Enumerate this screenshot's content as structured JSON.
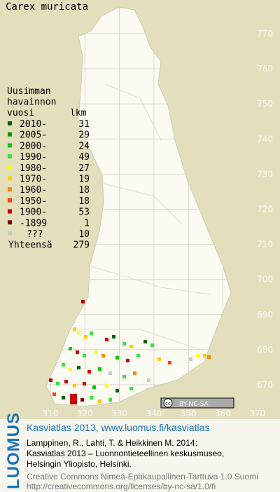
{
  "title": "Carex muricata",
  "legend": {
    "heading": [
      "Uusimman",
      "havainnon",
      "vuosi"
    ],
    "count_heading": "lkm",
    "rows": [
      {
        "label": "2010-",
        "count": 31,
        "color": "#006400"
      },
      {
        "label": "2005-",
        "count": 29,
        "color": "#009a00"
      },
      {
        "label": "2000-",
        "count": 24,
        "color": "#00cc00"
      },
      {
        "label": "1990-",
        "count": 49,
        "color": "#33e833"
      },
      {
        "label": "1980-",
        "count": 27,
        "color": "#ffff00"
      },
      {
        "label": "1970-",
        "count": 19,
        "color": "#ffcc00"
      },
      {
        "label": "1960-",
        "count": 18,
        "color": "#ff8800"
      },
      {
        "label": "1950-",
        "count": 18,
        "color": "#ff4400"
      },
      {
        "label": "1900-",
        "count": 53,
        "color": "#cc0000"
      },
      {
        "label": "-1899",
        "count": 1,
        "color": "#800000"
      },
      {
        "label": "???",
        "count": 10,
        "color": "#c8c8c8"
      }
    ],
    "total_label": "Yhteensä",
    "total": 279
  },
  "grid": {
    "northing": [
      770,
      760,
      750,
      740,
      730,
      720,
      710,
      700,
      690,
      680,
      670
    ],
    "easting": [
      310,
      320,
      330,
      340,
      350,
      360,
      370
    ]
  },
  "license": "BY-NC-SA",
  "logo": "LUOMUS",
  "credits": {
    "headline": "Kasviatlas 2013, www.luomus.fi/kasviatlas",
    "lines": [
      "Lamppinen, R., Lahti, T. & Heikkinen M. 2014:",
      "Kasviatlas 2013 – Luonnontieteellinen keskusmuseo,",
      "Helsingin Yliopisto, Helsinki."
    ],
    "license_lines": [
      "Creative Commons Nimeä-Epäkaupallinen-Tarttuva 1.0 Suomi",
      "http://creativecommons.org/licenses/by-nc-sa/1.0/fi"
    ]
  }
}
